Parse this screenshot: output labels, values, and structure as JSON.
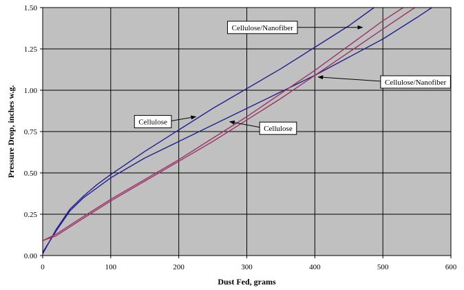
{
  "chart_data": {
    "type": "line",
    "xlabel": "Dust Fed, grams",
    "ylabel": "Pressure Drop, inches w.g.",
    "xlim": [
      0,
      600
    ],
    "ylim": [
      0,
      1.5
    ],
    "x_ticks": [
      "0",
      "100",
      "200",
      "300",
      "400",
      "500",
      "600"
    ],
    "y_ticks": [
      "0.00",
      "0.25",
      "0.50",
      "0.75",
      "1.00",
      "1.25",
      "1.50"
    ],
    "grid": true,
    "plot_background": "#c0c0c0",
    "series": [
      {
        "color": "#1f1f8f",
        "x": [
          0,
          20,
          40,
          60,
          80,
          100,
          150,
          200,
          250,
          300,
          350,
          400,
          450,
          487
        ],
        "y": [
          0.01,
          0.16,
          0.28,
          0.36,
          0.43,
          0.49,
          0.63,
          0.76,
          0.89,
          1.01,
          1.13,
          1.26,
          1.39,
          1.5
        ]
      },
      {
        "color": "#1f1f8f",
        "x": [
          0,
          20,
          40,
          60,
          80,
          100,
          150,
          200,
          250,
          300,
          350,
          400,
          450,
          500,
          550,
          572
        ],
        "y": [
          0.02,
          0.15,
          0.27,
          0.35,
          0.41,
          0.47,
          0.59,
          0.69,
          0.79,
          0.89,
          0.99,
          1.09,
          1.2,
          1.31,
          1.44,
          1.5
        ]
      },
      {
        "color": "#993366",
        "x": [
          0,
          20,
          50,
          100,
          150,
          200,
          250,
          300,
          350,
          400,
          450,
          500,
          530
        ],
        "y": [
          0.09,
          0.13,
          0.21,
          0.34,
          0.46,
          0.58,
          0.71,
          0.84,
          0.98,
          1.12,
          1.27,
          1.42,
          1.5
        ]
      },
      {
        "color": "#993366",
        "x": [
          0,
          20,
          50,
          100,
          150,
          200,
          250,
          300,
          350,
          400,
          450,
          500,
          547
        ],
        "y": [
          0.09,
          0.12,
          0.2,
          0.33,
          0.45,
          0.57,
          0.69,
          0.82,
          0.95,
          1.09,
          1.23,
          1.37,
          1.5
        ]
      }
    ],
    "annotations": [
      {
        "text": "Cellulose/Nanofiber",
        "box_at": [
          323,
          1.38
        ],
        "arrow_to": [
          470,
          1.38
        ]
      },
      {
        "text": "Cellulose/Nanofiber",
        "box_at": [
          548,
          1.05
        ],
        "arrow_to": [
          405,
          1.08
        ]
      },
      {
        "text": "Cellulose",
        "box_at": [
          162,
          0.81
        ],
        "arrow_to": [
          225,
          0.84
        ]
      },
      {
        "text": "Cellulose",
        "box_at": [
          346,
          0.77
        ],
        "arrow_to": [
          275,
          0.81
        ]
      }
    ]
  }
}
